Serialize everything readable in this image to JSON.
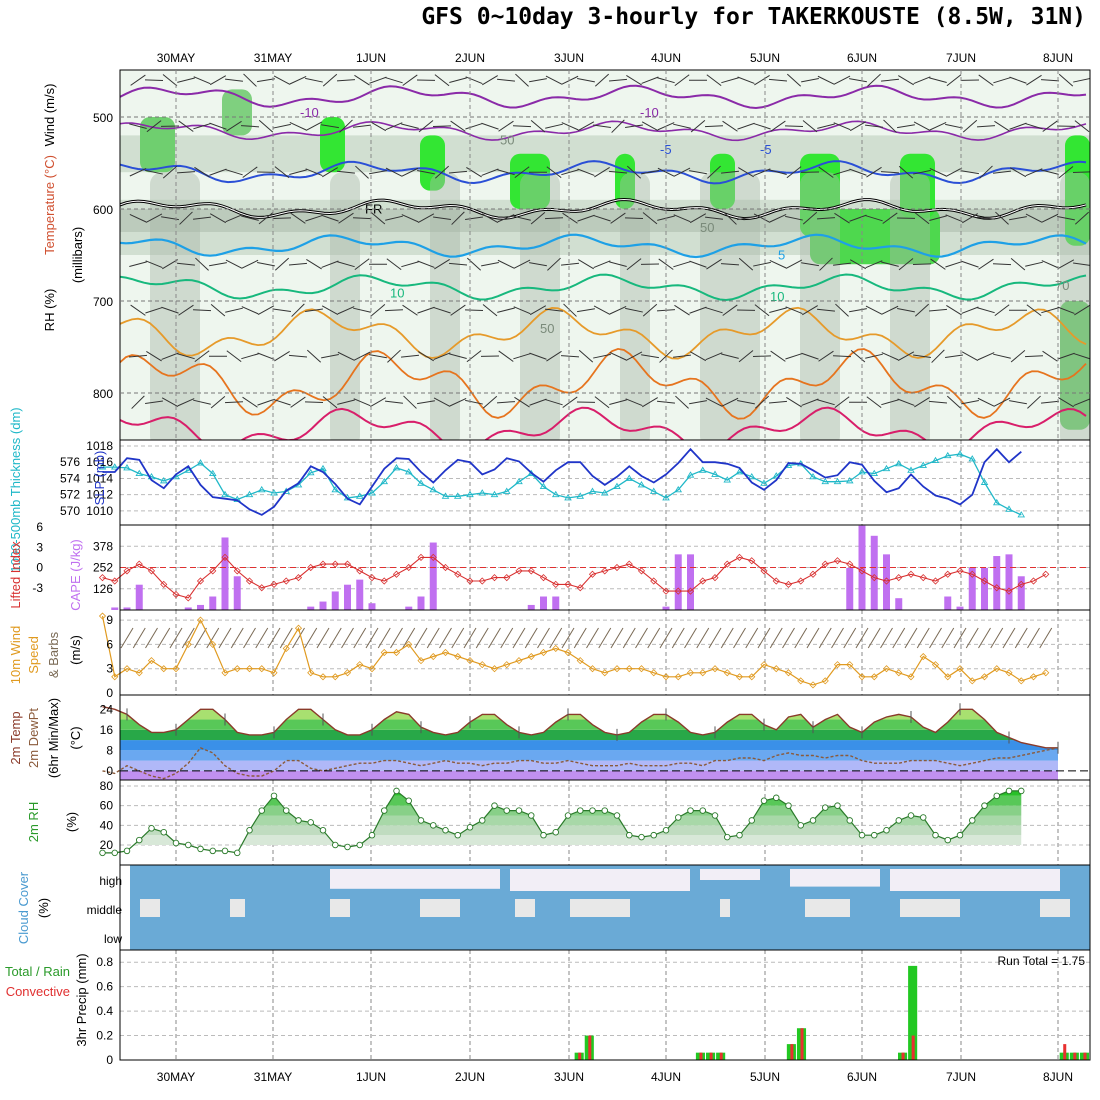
{
  "title": "GFS 0~10day 3-hourly for TAKERKOUSTE (8.5W, 31N)",
  "dates": [
    "30MAY",
    "31MAY",
    "1JUN",
    "2JUN",
    "3JUN",
    "4JUN",
    "5JUN",
    "6JUN",
    "7JUN",
    "8JUN"
  ],
  "run_total": "Run Total = 1.75",
  "labels": {
    "upper_wind": "Wind (m/s)",
    "upper_temp": "Temperature (°C)",
    "upper_rh": "RH (%)",
    "upper_mb": "(millibars)",
    "thick": "1000-500mb Thickness (dm)",
    "slp": "SLP (mb)",
    "li": "Lifted Index",
    "cape": "CAPE (J/kg)",
    "wind10": "10m Wind",
    "wind10b": "Speed",
    "wind10c": "& Barbs",
    "wind10_unit": "(m/s)",
    "temp1": "2m Temp",
    "temp2": "2m DewPt",
    "temp3": "(6hr Min/Max)",
    "temp_unit": "(°C)",
    "rh2m": "2m RH",
    "rh_unit": "(%)",
    "cloud": "Cloud Cover",
    "cloud_unit": "(%)",
    "cloud_high": "high",
    "cloud_middle": "middle",
    "cloud_low": "low",
    "precip1": "Total / Rain",
    "precip2": "Convective",
    "precip3": "3hr Precip (mm)",
    "fr": "FR"
  },
  "chart_data": [
    {
      "type": "line",
      "panel": "upper-air cross-section",
      "ylabel": "(millibars)",
      "yticks": [
        500,
        600,
        700,
        800
      ],
      "temperature_contour_labels": [
        "-10",
        "-10",
        "-5",
        "-5",
        "10",
        "10",
        "FR"
      ],
      "rh_contour_labels": [
        "50",
        "50",
        "50",
        "70"
      ]
    },
    {
      "type": "line",
      "panel": "thickness/slp",
      "thickness_ticks": [
        570,
        572,
        574,
        576
      ],
      "slp_ticks": [
        1010,
        1012,
        1014,
        1016,
        1018
      ],
      "series": [
        {
          "name": "SLP (mb)",
          "values": [
            1014.8,
            1014.8,
            1016.5,
            1016.3,
            1013.8,
            1012.8,
            1014.5,
            1015.5,
            1013.2,
            1011.7,
            1011.5,
            1011.3,
            1010.2,
            1009.5,
            1010.5,
            1012.5,
            1013.4,
            1015.5,
            1014.8,
            1013.3,
            1011.5,
            1010.8,
            1013.0,
            1015.2,
            1016.5,
            1016.4,
            1014.8,
            1013.5,
            1015.0,
            1016.3,
            1016.0,
            1014.5,
            1015.1,
            1016.5,
            1016.1,
            1014.7,
            1013.6,
            1015.0,
            1016.0,
            1016.0,
            1014.3,
            1013.2,
            1014.2,
            1015.5,
            1014.3,
            1013.5,
            1014.5,
            1015.9,
            1017.6,
            1016.0,
            1016.0,
            1015.8,
            1015.3,
            1013.5,
            1012.6,
            1013.8,
            1015.9,
            1015.8,
            1015.0,
            1014.1,
            1014.4,
            1016.0,
            1015.7,
            1013.7,
            1012.3,
            1012.8,
            1014.5,
            1013.0,
            1011.9,
            1011.5,
            1010.8,
            1012.0,
            1016.0,
            1017.6,
            1016.0,
            1017.3
          ]
        },
        {
          "name": "1000-500mb Thickness (dm)",
          "values": [
            575.4,
            575.4,
            575.3,
            574.6,
            574.2,
            573.7,
            574.2,
            575.0,
            575.9,
            574.6,
            572.0,
            571.4,
            572.0,
            572.6,
            572.2,
            572.4,
            573.2,
            574.7,
            575.2,
            572.6,
            571.6,
            571.8,
            572.2,
            573.6,
            575.3,
            574.8,
            573.4,
            572.6,
            571.8,
            571.8,
            572.0,
            572.2,
            572.0,
            572.4,
            573.6,
            574.6,
            573.0,
            572.0,
            571.6,
            571.8,
            572.4,
            572.2,
            573.0,
            574.0,
            573.2,
            572.4,
            571.6,
            572.6,
            574.4,
            575.0,
            574.5,
            573.8,
            574.8,
            574.2,
            573.4,
            574.3,
            575.6,
            575.8,
            574.2,
            573.6,
            573.6,
            573.7,
            574.8,
            574.6,
            575.2,
            575.8,
            575.0,
            575.6,
            576.2,
            576.8,
            577.0,
            576.4,
            573.5,
            571.0,
            570.2,
            569.5
          ]
        }
      ]
    },
    {
      "type": "bar",
      "panel": "cape/lifted-index",
      "cape_ticks": [
        126,
        252,
        378
      ],
      "li_ticks": [
        "-3",
        "0",
        "3",
        "6"
      ],
      "series": [
        {
          "name": "CAPE (J/kg)",
          "values": [
            0,
            15,
            15,
            150,
            0,
            0,
            0,
            15,
            30,
            80,
            430,
            200,
            0,
            0,
            0,
            0,
            0,
            20,
            50,
            110,
            150,
            180,
            40,
            0,
            0,
            20,
            80,
            400,
            0,
            0,
            0,
            0,
            0,
            0,
            0,
            30,
            80,
            80,
            0,
            0,
            0,
            0,
            0,
            0,
            0,
            0,
            20,
            330,
            330,
            0,
            0,
            0,
            0,
            0,
            0,
            0,
            0,
            0,
            0,
            0,
            0,
            250,
            500,
            440,
            330,
            70,
            0,
            0,
            0,
            80,
            20,
            250,
            250,
            320,
            330,
            200,
            0
          ]
        },
        {
          "name": "Lifted Index",
          "values": [
            1.5,
            2.0,
            0.5,
            -0.5,
            0.5,
            2.5,
            4.0,
            4.5,
            2.0,
            0.5,
            -1.5,
            0.5,
            2.0,
            3.0,
            2.5,
            2.0,
            1.5,
            0.0,
            -0.5,
            -0.5,
            -0.5,
            0.5,
            1.5,
            2.0,
            1.0,
            0.0,
            -1.5,
            -1.5,
            0.0,
            1.0,
            2.0,
            2.0,
            1.5,
            1.5,
            0.5,
            0.5,
            1.5,
            2.5,
            2.5,
            3.0,
            1.0,
            0.5,
            0.0,
            -0.5,
            0.5,
            2.0,
            3.5,
            3.5,
            3.5,
            2.0,
            1.5,
            -0.5,
            -1.5,
            -1.0,
            0.5,
            2.0,
            2.5,
            2.0,
            1.0,
            -0.5,
            -1.0,
            -0.5,
            0.5,
            1.5,
            2.0,
            1.5,
            1.0,
            1.5,
            2.0,
            1.0,
            0.5,
            1.0,
            2.0,
            3.0,
            3.5,
            2.5,
            2.0,
            1.0
          ]
        }
      ]
    },
    {
      "type": "line",
      "panel": "10m wind",
      "ylabel": "(m/s)",
      "yticks": [
        0,
        3,
        6,
        9
      ],
      "series": [
        {
          "name": "10m Wind Speed",
          "values": [
            9.5,
            2.0,
            3.0,
            2.5,
            4.0,
            3.0,
            3.0,
            6.0,
            9.0,
            6.0,
            2.5,
            3.0,
            3.0,
            3.0,
            2.5,
            5.5,
            8.0,
            2.5,
            2.0,
            2.0,
            2.5,
            3.5,
            3.0,
            5.0,
            5.0,
            6.0,
            4.0,
            4.5,
            5.0,
            4.5,
            4.0,
            3.5,
            3.0,
            3.5,
            4.0,
            4.5,
            5.0,
            5.5,
            5.0,
            4.0,
            3.0,
            2.5,
            3.0,
            3.0,
            3.0,
            2.5,
            2.0,
            2.0,
            2.5,
            2.5,
            3.0,
            2.5,
            2.0,
            2.0,
            3.5,
            3.0,
            2.5,
            1.5,
            1.0,
            1.5,
            3.5,
            3.5,
            2.0,
            2.0,
            3.0,
            2.5,
            2.0,
            4.5,
            3.5,
            2.0,
            3.0,
            1.5,
            2.0,
            3.0,
            2.5,
            1.5,
            2.0,
            2.5
          ]
        }
      ]
    },
    {
      "type": "area",
      "panel": "2m temperature",
      "ylabel": "(°C)",
      "yticks": [
        0,
        8,
        16,
        24
      ],
      "series": [
        {
          "name": "2m Temp",
          "values": [
            25,
            24,
            22,
            18,
            15,
            15,
            16,
            20,
            24,
            24,
            20,
            15,
            14,
            14,
            15,
            20,
            24,
            24,
            20,
            16,
            14,
            14,
            16,
            20,
            23,
            22,
            17,
            15,
            14,
            15,
            19,
            22,
            22,
            18,
            15,
            14,
            15,
            19,
            22,
            22,
            18,
            15,
            14,
            15,
            19,
            22,
            22,
            19,
            15,
            14,
            15,
            19,
            22,
            22,
            18,
            16,
            21,
            22,
            17,
            20,
            22,
            17,
            15,
            19,
            21,
            22,
            21,
            17,
            15,
            19,
            24,
            24,
            20,
            15,
            13,
            11,
            10,
            9,
            9
          ]
        },
        {
          "name": "2m DewPt",
          "values": [
            0,
            -1,
            2,
            0,
            -2,
            -3,
            -1,
            3,
            9,
            7,
            2,
            -1,
            -2,
            -2,
            0,
            4,
            4,
            1,
            0,
            1,
            2,
            3,
            3,
            4,
            4,
            3,
            2,
            3,
            4,
            3,
            3,
            2,
            3,
            3,
            4,
            4,
            3,
            3,
            4,
            3,
            2,
            2,
            2,
            3,
            2,
            2,
            2,
            3,
            3,
            2,
            4,
            4,
            5,
            5,
            4,
            6,
            7,
            6,
            6,
            5,
            6,
            6,
            4,
            3,
            3,
            3,
            4,
            4,
            4,
            3,
            2,
            3,
            4,
            5,
            5,
            6,
            7,
            8,
            9
          ]
        }
      ]
    },
    {
      "type": "area",
      "panel": "2m relative humidity",
      "ylabel": "(%)",
      "yticks": [
        20,
        40,
        60,
        80
      ],
      "series": [
        {
          "name": "2m RH",
          "values": [
            12,
            12,
            14,
            25,
            37,
            33,
            22,
            20,
            16,
            14,
            14,
            12,
            35,
            55,
            70,
            55,
            45,
            43,
            35,
            20,
            18,
            20,
            30,
            55,
            75,
            65,
            45,
            40,
            35,
            30,
            38,
            45,
            60,
            55,
            55,
            50,
            30,
            33,
            50,
            55,
            55,
            55,
            50,
            30,
            28,
            30,
            35,
            48,
            55,
            55,
            50,
            28,
            30,
            45,
            65,
            68,
            60,
            40,
            45,
            58,
            60,
            45,
            30,
            30,
            35,
            45,
            50,
            48,
            30,
            25,
            30,
            45,
            60,
            70,
            75,
            75
          ]
        }
      ]
    },
    {
      "type": "heatmap",
      "panel": "cloud cover",
      "ylabel": "(%)",
      "levels": [
        "high",
        "middle",
        "low"
      ]
    },
    {
      "type": "bar",
      "panel": "3hr precipitation",
      "ylabel": "3hr Precip (mm)",
      "yticks": [
        0,
        0.2,
        0.4,
        0.6,
        0.8
      ],
      "series": [
        {
          "name": "Total / Rain",
          "values": [
            0,
            0,
            0,
            0,
            0,
            0,
            0,
            0,
            0,
            0,
            0,
            0,
            0,
            0,
            0,
            0,
            0,
            0,
            0,
            0,
            0,
            0,
            0,
            0,
            0,
            0,
            0,
            0,
            0,
            0,
            0,
            0,
            0,
            0,
            0,
            0,
            0,
            0,
            0,
            0,
            0,
            0,
            0,
            0,
            0.06,
            0.2,
            0,
            0,
            0,
            0,
            0,
            0,
            0,
            0,
            0,
            0,
            0.06,
            0.06,
            0.06,
            0,
            0,
            0,
            0,
            0,
            0,
            0.13,
            0.26,
            0,
            0,
            0,
            0,
            0,
            0,
            0,
            0,
            0,
            0.06,
            0.77,
            0,
            0,
            0,
            0,
            0,
            0,
            0,
            0,
            0,
            0,
            0,
            0,
            0,
            0,
            0.06,
            0.06,
            0.06
          ]
        },
        {
          "name": "Convective",
          "values": [
            0,
            0,
            0,
            0,
            0,
            0,
            0,
            0,
            0,
            0,
            0,
            0,
            0,
            0,
            0,
            0,
            0,
            0,
            0,
            0,
            0,
            0,
            0,
            0,
            0,
            0,
            0,
            0,
            0,
            0,
            0,
            0,
            0,
            0,
            0,
            0,
            0,
            0,
            0,
            0,
            0,
            0,
            0,
            0,
            0.06,
            0.2,
            0,
            0,
            0,
            0,
            0,
            0,
            0,
            0,
            0,
            0,
            0.06,
            0.06,
            0.06,
            0,
            0,
            0,
            0,
            0,
            0,
            0.13,
            0.26,
            0,
            0,
            0,
            0,
            0,
            0,
            0,
            0,
            0,
            0.06,
            0.2,
            0,
            0,
            0,
            0,
            0,
            0,
            0,
            0,
            0,
            0,
            0,
            0,
            0,
            0,
            0.13,
            0.06,
            0.06
          ]
        }
      ]
    }
  ]
}
